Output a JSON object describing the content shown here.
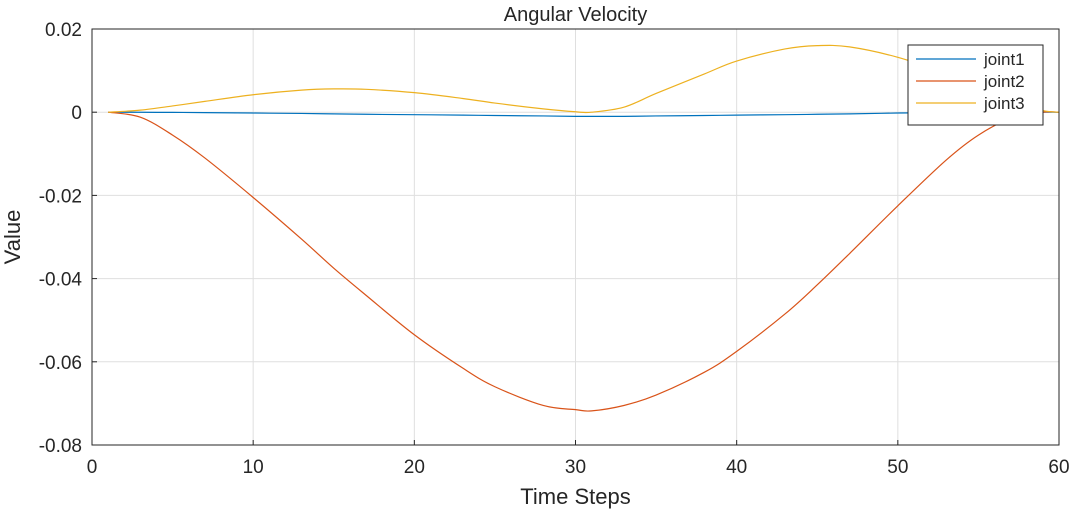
{
  "chart_data": {
    "type": "line",
    "title": "Angular Velocity",
    "xlabel": "Time Steps",
    "ylabel": "Value",
    "xlim": [
      0,
      60
    ],
    "ylim": [
      -0.08,
      0.02
    ],
    "xticks": [
      0,
      10,
      20,
      30,
      40,
      50,
      60
    ],
    "xtick_labels": [
      "0",
      "10",
      "20",
      "30",
      "40",
      "50",
      "60"
    ],
    "yticks": [
      -0.08,
      -0.06,
      -0.04,
      -0.02,
      0,
      0.02
    ],
    "ytick_labels": [
      "-0.08",
      "-0.06",
      "-0.04",
      "-0.02",
      "0",
      "0.02"
    ],
    "grid": true,
    "legend_position": "top-right",
    "x": [
      1,
      3,
      5,
      7,
      10,
      13,
      15,
      17,
      20,
      23,
      25,
      28,
      30,
      31,
      33,
      35,
      38,
      40,
      43,
      45,
      47,
      50,
      53,
      55,
      57,
      59,
      60
    ],
    "series": [
      {
        "name": "joint1",
        "color": "#0072BD",
        "values": [
          0,
          -2e-05,
          -5e-05,
          -0.0001,
          -0.0002,
          -0.0003,
          -0.0004,
          -0.0005,
          -0.0006,
          -0.0007,
          -0.0008,
          -0.0009,
          -0.001,
          -0.001,
          -0.001,
          -0.0009,
          -0.0008,
          -0.0007,
          -0.0006,
          -0.0005,
          -0.0004,
          -0.0002,
          -0.0001,
          0,
          0,
          0,
          0
        ]
      },
      {
        "name": "joint2",
        "color": "#D95319",
        "values": [
          0,
          -0.0012,
          -0.0055,
          -0.011,
          -0.0205,
          -0.0305,
          -0.0375,
          -0.044,
          -0.0535,
          -0.0615,
          -0.066,
          -0.0705,
          -0.0715,
          -0.0718,
          -0.0705,
          -0.068,
          -0.0625,
          -0.0575,
          -0.0485,
          -0.0415,
          -0.034,
          -0.0225,
          -0.0115,
          -0.0055,
          -0.0015,
          0,
          0
        ]
      },
      {
        "name": "joint3",
        "color": "#EDB120",
        "values": [
          0,
          0.0005,
          0.0015,
          0.0026,
          0.0042,
          0.0053,
          0.0056,
          0.0055,
          0.0047,
          0.0033,
          0.0022,
          0.0008,
          0.0001,
          0,
          0.0012,
          0.0045,
          0.0092,
          0.0123,
          0.0152,
          0.016,
          0.0157,
          0.0132,
          0.0093,
          0.0061,
          0.0026,
          0.0004,
          0
        ]
      }
    ]
  }
}
